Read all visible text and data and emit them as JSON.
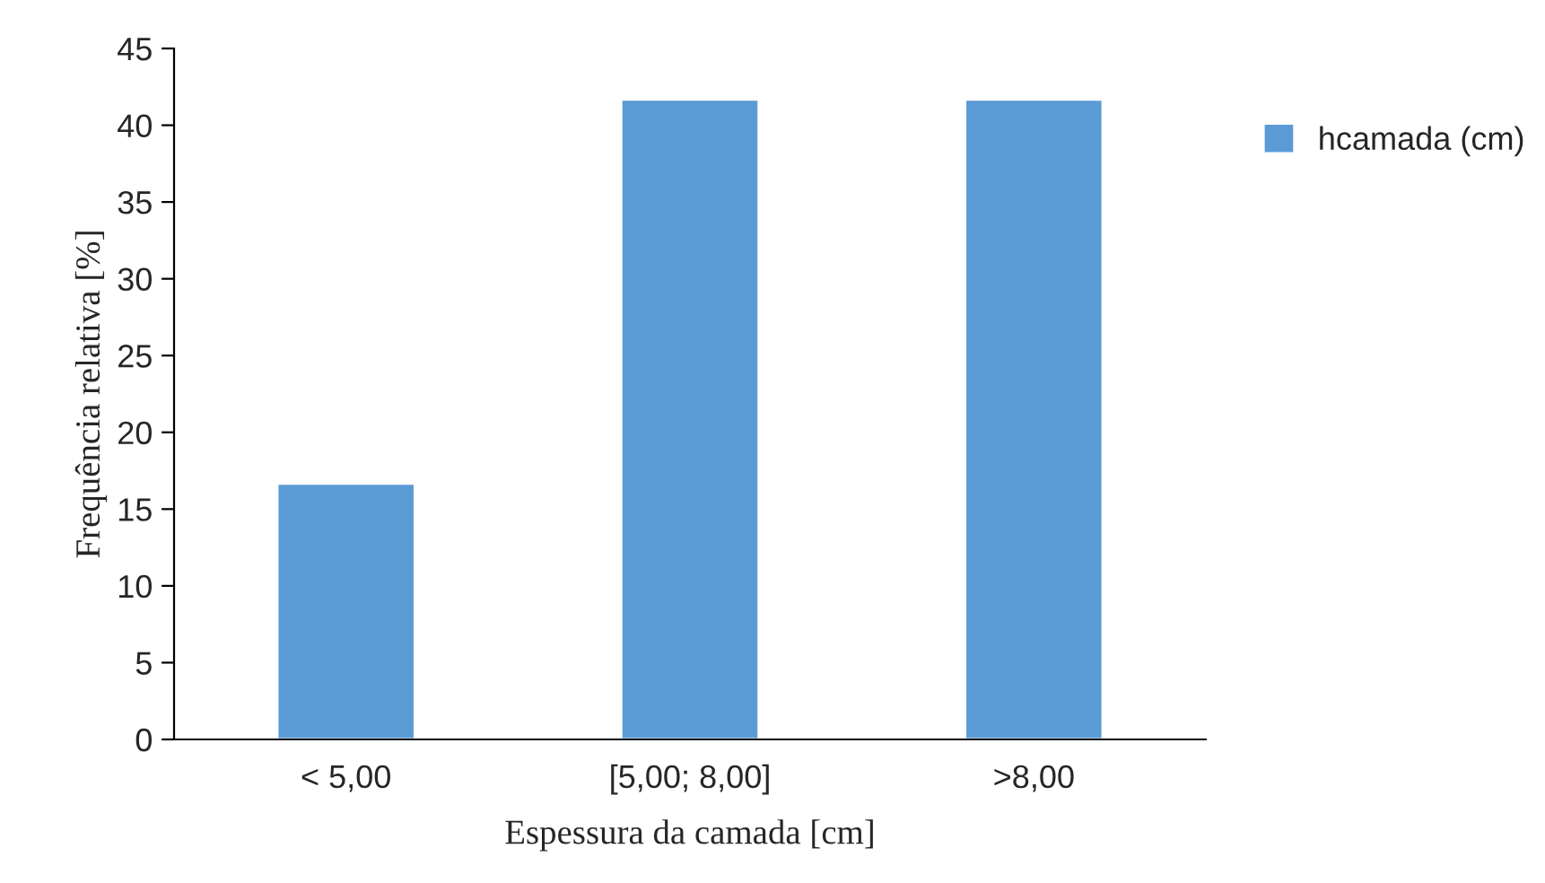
{
  "chart_data": {
    "type": "bar",
    "xlabel": "Espessura da camada [cm]",
    "ylabel": "Frequência relativa [%]",
    "categories": [
      "< 5,00",
      "[5,00; 8,00]",
      ">8,00"
    ],
    "series": [
      {
        "name": "hcamada (cm)",
        "color": "#5b9bd5",
        "values": [
          16.67,
          41.67,
          41.67
        ]
      }
    ],
    "ylim": [
      0,
      45
    ],
    "yticks": [
      0,
      5,
      10,
      15,
      20,
      25,
      30,
      35,
      40,
      45
    ],
    "grid": false,
    "legend": "top right"
  }
}
